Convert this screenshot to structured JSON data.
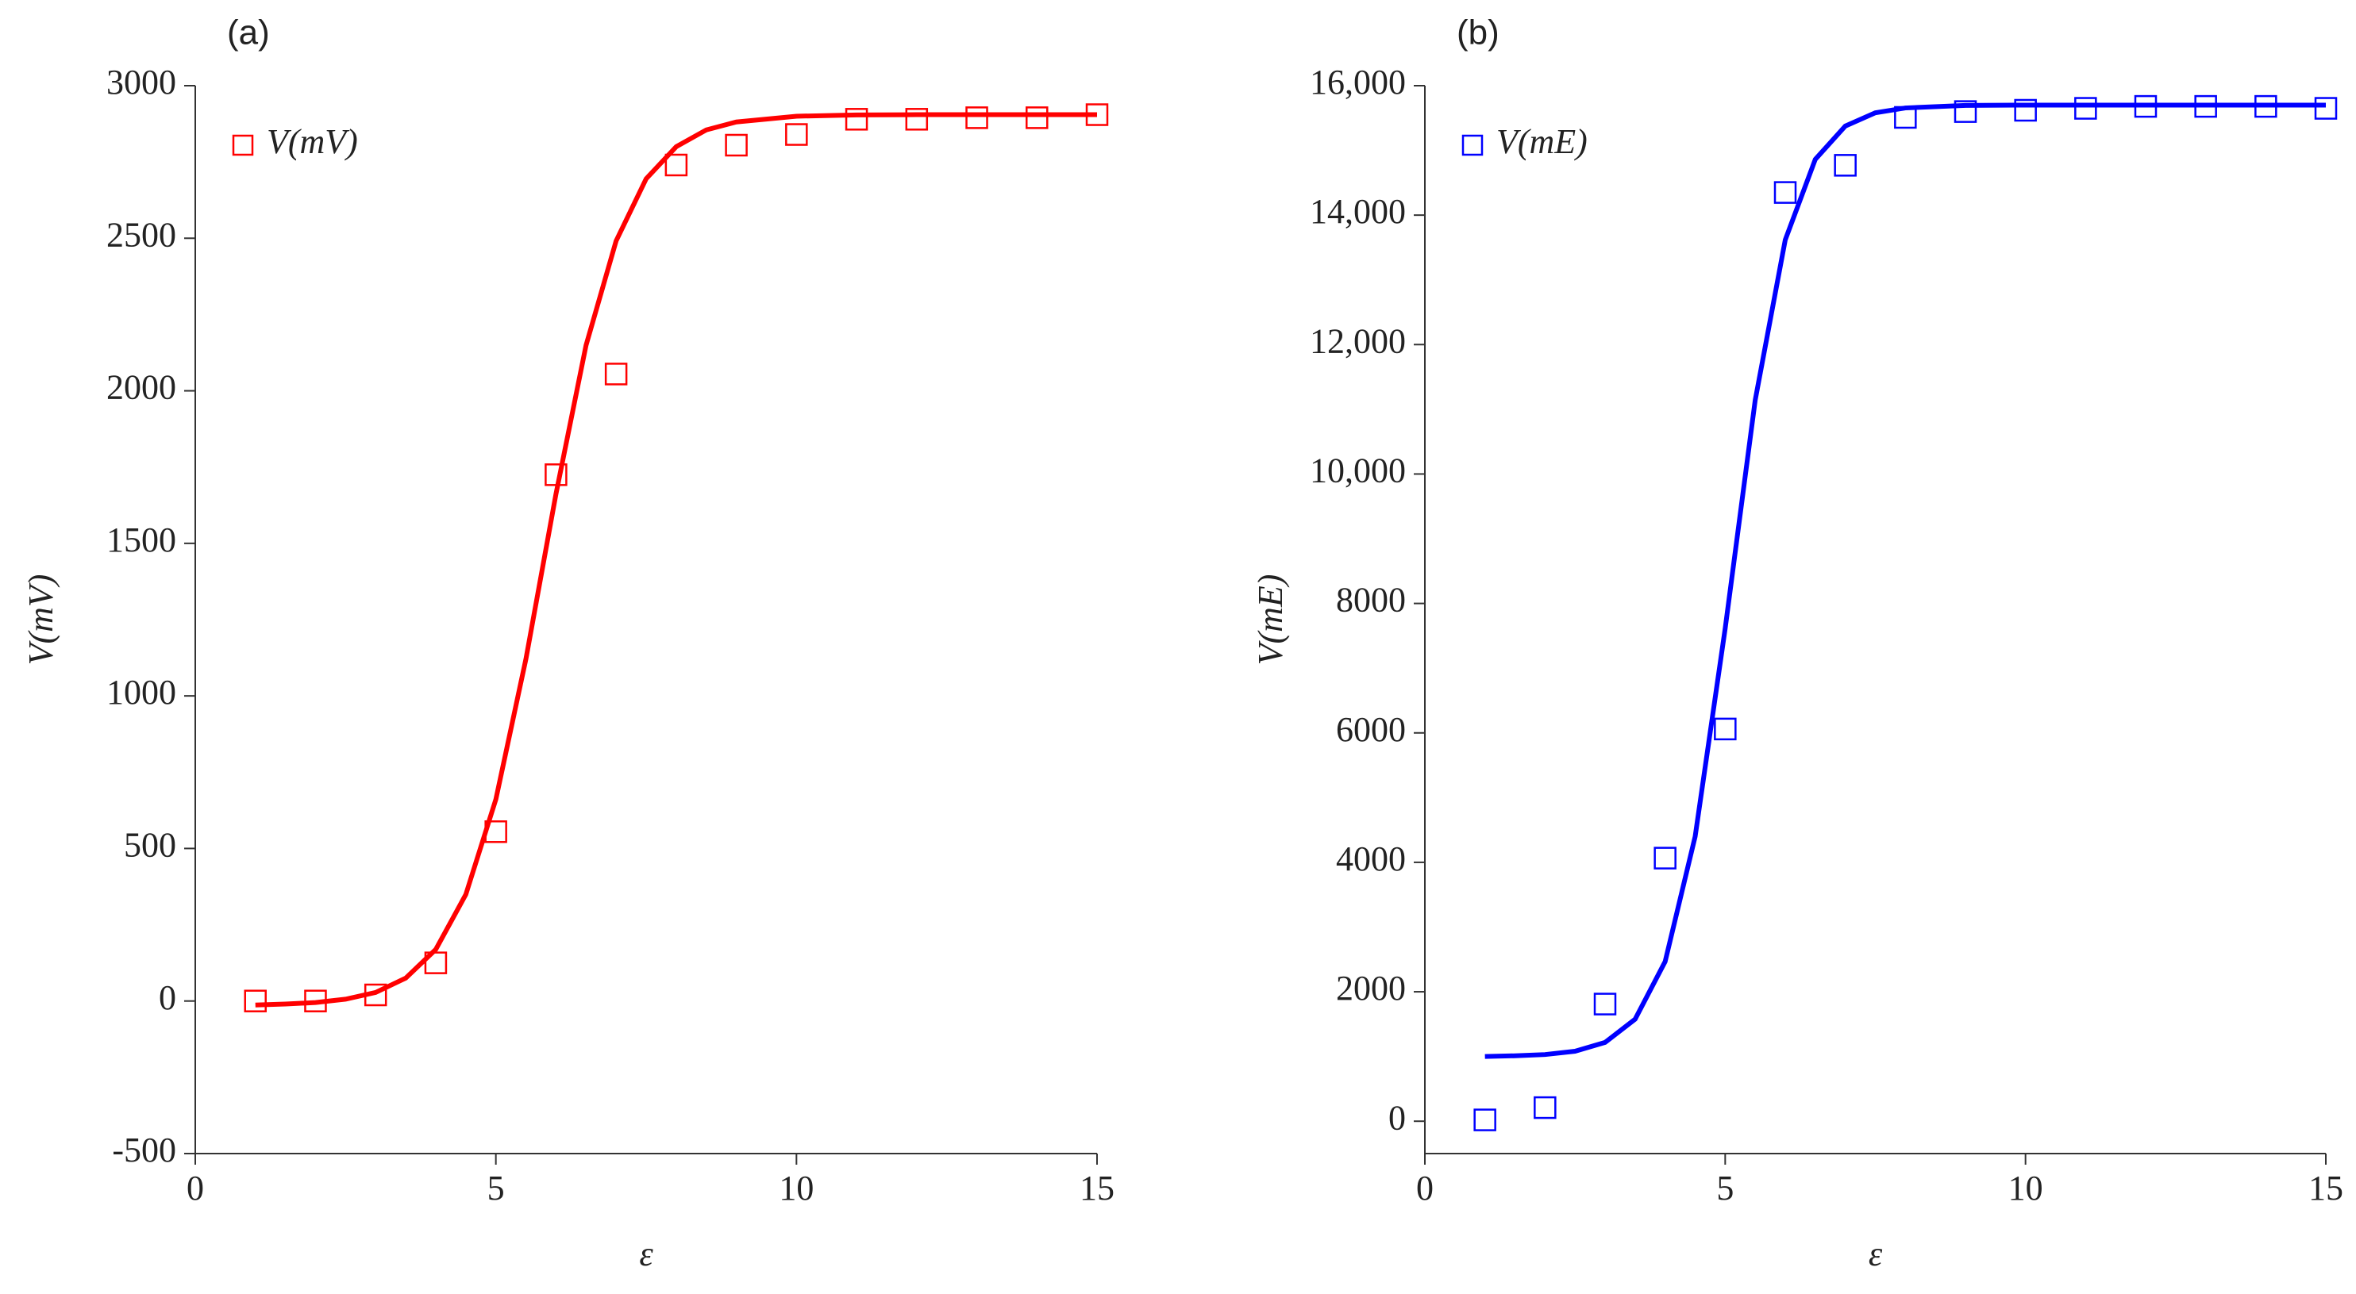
{
  "chart_data": [
    {
      "type": "scatter",
      "panel_label": "(a)",
      "x_label": "ε",
      "y_label": "V(mV)",
      "xlim": [
        0,
        15
      ],
      "xticks": [
        0,
        5,
        10,
        15
      ],
      "ylim": [
        -500,
        3000
      ],
      "yticks": [
        -500,
        0,
        500,
        1000,
        1500,
        2000,
        2500,
        3000
      ],
      "legend": "upper left",
      "series": [
        {
          "name": "V(mV)",
          "color": "#ff0000",
          "style": "marker",
          "x": [
            1,
            2,
            3,
            4,
            5,
            6,
            7,
            8,
            9,
            10,
            11,
            12,
            13,
            14,
            15
          ],
          "values": [
            0,
            0,
            20,
            125,
            555,
            1725,
            2055,
            2740,
            2805,
            2840,
            2890,
            2890,
            2895,
            2895,
            2905
          ]
        },
        {
          "color": "#ff0000",
          "style": "line",
          "x": [
            1,
            1.5,
            2,
            2.5,
            3,
            3.5,
            4,
            4.5,
            5,
            5.5,
            6,
            6.5,
            7,
            7.5,
            8,
            8.5,
            9,
            10,
            11,
            12,
            13,
            14,
            15
          ],
          "values": [
            -13,
            -10,
            -5,
            6,
            28,
            75,
            169,
            349,
            661,
            1121,
            1662,
            2149,
            2491,
            2695,
            2800,
            2855,
            2881,
            2900,
            2904,
            2905,
            2905,
            2905,
            2905
          ]
        }
      ]
    },
    {
      "type": "scatter",
      "panel_label": "(b)",
      "x_label": "ε",
      "y_label": "V(mE)",
      "xlim": [
        0,
        15
      ],
      "xticks": [
        0,
        5,
        10,
        15
      ],
      "ylim": [
        -500,
        16000
      ],
      "yticks": [
        0,
        2000,
        4000,
        6000,
        8000,
        {
          "value": 10000,
          "label": "10,000"
        },
        {
          "value": 12000,
          "label": "12,000"
        },
        {
          "value": 14000,
          "label": "14,000"
        },
        {
          "value": 16000,
          "label": "16,000"
        }
      ],
      "legend": "upper left",
      "series": [
        {
          "name": "V(mE)",
          "color": "#0000ff",
          "style": "marker",
          "x": [
            1,
            2,
            3,
            4,
            5,
            6,
            7,
            8,
            9,
            10,
            11,
            12,
            13,
            14,
            15
          ],
          "values": [
            20,
            210,
            1810,
            4065,
            6060,
            14350,
            14770,
            15510,
            15600,
            15620,
            15650,
            15680,
            15680,
            15680,
            15650
          ]
        },
        {
          "color": "#0000ff",
          "style": "line",
          "x": [
            1,
            1.5,
            2,
            2.5,
            3,
            3.5,
            4,
            4.5,
            5,
            5.5,
            6,
            6.5,
            7,
            7.5,
            8,
            9,
            10,
            11,
            12,
            13,
            14,
            15
          ],
          "values": [
            1000,
            1011,
            1030,
            1081,
            1217,
            1576,
            2466,
            4400,
            7615,
            11143,
            13618,
            14862,
            15377,
            15581,
            15656,
            15695,
            15700,
            15700,
            15700,
            15700,
            15700,
            15700
          ]
        }
      ]
    }
  ]
}
